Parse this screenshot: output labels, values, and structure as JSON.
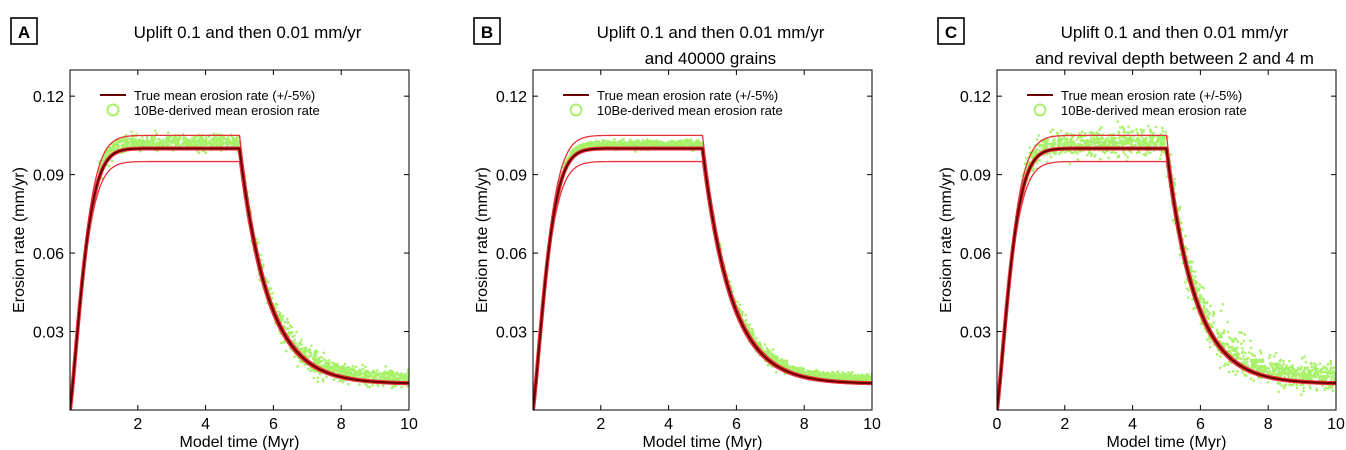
{
  "colors": {
    "true_rate": "#6b0000",
    "bounds": "#e8323a",
    "derived": "#a8f26a",
    "axis": "#000000"
  },
  "chart_data": [
    {
      "type": "line",
      "panel_label": "A",
      "title_lines": [
        "Uplift 0.1 and then 0.01 mm/yr"
      ],
      "xlabel": "Model time (Myr)",
      "ylabel": "Erosion rate (mm/yr)",
      "xlim": [
        0,
        10
      ],
      "ylim": [
        0,
        0.13
      ],
      "xticks": [
        2,
        4,
        6,
        8,
        10
      ],
      "yticks": [
        0.03,
        0.06,
        0.09,
        0.12
      ],
      "ytick_labels": [
        "0.03",
        "0.06",
        "0.09",
        "0.12"
      ],
      "legend": {
        "position": "top-left",
        "entries": [
          "True mean erosion rate (+/-5%)",
          "10Be-derived mean erosion rate"
        ]
      },
      "scatter_spread": 0.0015,
      "scatter_start": 0.85,
      "series": [
        {
          "name": "True mean erosion rate (+/-5%)",
          "kind": "line",
          "uplift_change_myr": 5.0,
          "plateau": 0.1,
          "final": 0.01,
          "bound_pct": 5
        },
        {
          "name": "10Be-derived mean erosion rate",
          "kind": "scatter",
          "plateau_value": 0.1015,
          "final_value": 0.011
        }
      ]
    },
    {
      "type": "line",
      "panel_label": "B",
      "title_lines": [
        "Uplift 0.1 and then 0.01 mm/yr",
        "and 40000 grains"
      ],
      "xlabel": "Model time (Myr)",
      "ylabel": "Erosion rate (mm/yr)",
      "xlim": [
        0,
        10
      ],
      "ylim": [
        0,
        0.13
      ],
      "xticks": [
        2,
        4,
        6,
        8,
        10
      ],
      "yticks": [
        0.03,
        0.06,
        0.09,
        0.12
      ],
      "ytick_labels": [
        "0.03",
        "0.06",
        "0.09",
        "0.12"
      ],
      "legend": {
        "position": "top-left",
        "entries": [
          "True mean erosion rate (+/-5%)",
          "10Be-derived mean erosion rate"
        ]
      },
      "scatter_spread": 0.0008,
      "scatter_start": 0.85,
      "series": [
        {
          "name": "True mean erosion rate (+/-5%)",
          "kind": "line",
          "uplift_change_myr": 5.0,
          "plateau": 0.1,
          "final": 0.01,
          "bound_pct": 5
        },
        {
          "name": "10Be-derived mean erosion rate",
          "kind": "scatter",
          "plateau_value": 0.101,
          "final_value": 0.011
        }
      ]
    },
    {
      "type": "line",
      "panel_label": "C",
      "title_lines": [
        "Uplift 0.1 and then 0.01 mm/yr",
        "and revival depth between 2 and 4 m"
      ],
      "xlabel": "Model time (Myr)",
      "ylabel": "Erosion rate (mm/yr)",
      "xlim": [
        0,
        10
      ],
      "ylim": [
        0,
        0.13
      ],
      "xticks": [
        0,
        2,
        4,
        6,
        8,
        10
      ],
      "yticks": [
        0.03,
        0.06,
        0.09,
        0.12
      ],
      "ytick_labels": [
        "0.03",
        "0.06",
        "0.09",
        "0.12"
      ],
      "legend": {
        "position": "top-left",
        "entries": [
          "True mean erosion rate (+/-5%)",
          "10Be-derived mean erosion rate"
        ]
      },
      "scatter_spread": 0.0025,
      "scatter_start": 0.7,
      "series": [
        {
          "name": "True mean erosion rate (+/-5%)",
          "kind": "line",
          "uplift_change_myr": 5.0,
          "plateau": 0.1,
          "final": 0.01,
          "bound_pct": 5
        },
        {
          "name": "10Be-derived mean erosion rate",
          "kind": "scatter",
          "plateau_value": 0.1015,
          "final_value": 0.012
        }
      ]
    }
  ]
}
